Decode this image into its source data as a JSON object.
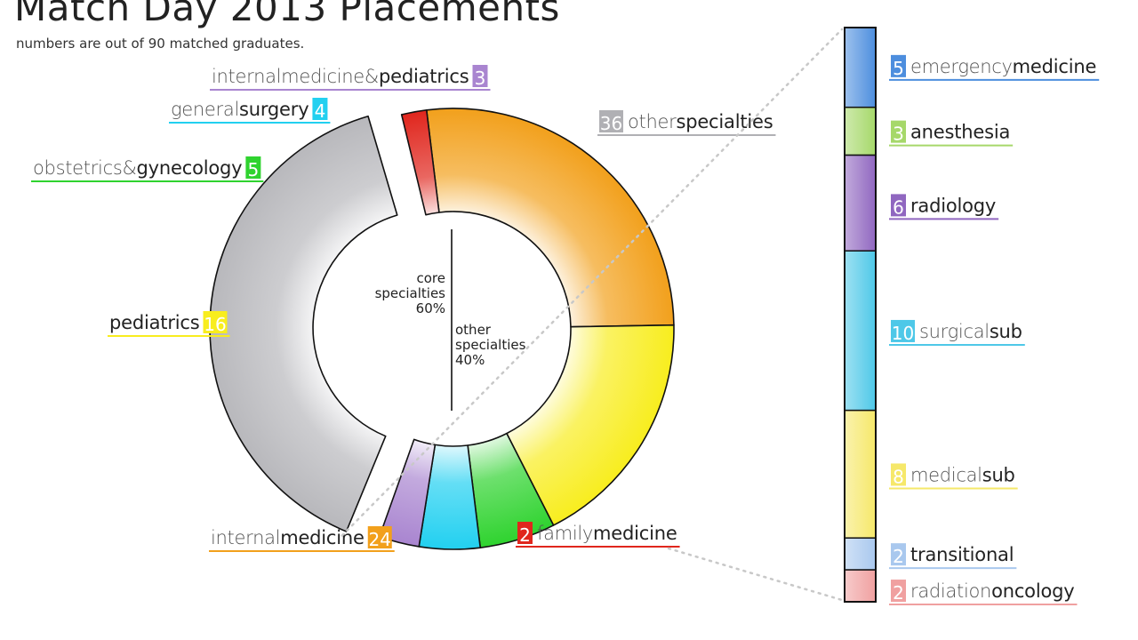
{
  "chart_data": {
    "type": "pie",
    "title": "Match Day 2013 Placements",
    "subtitle": "numbers are out of 90 matched graduates.",
    "total": 90,
    "center_labels": {
      "core": [
        "core",
        "specialties",
        "60%"
      ],
      "other": [
        "other",
        "specialties",
        "40%"
      ]
    },
    "donut": [
      {
        "value": 24,
        "pre": "internal",
        "main": "medicine",
        "color": "#f2a01c"
      },
      {
        "value": 16,
        "pre": "",
        "main": "pediatrics",
        "color": "#f8ed1e"
      },
      {
        "value": 5,
        "pre": "obstetrics&",
        "main": "gynecology",
        "color": "#2fd32f"
      },
      {
        "value": 4,
        "pre": "general",
        "main": "surgery",
        "color": "#22d0f0"
      },
      {
        "value": 3,
        "pre": "internalmedicine&",
        "main": "pediatrics",
        "color": "#a985d0"
      },
      {
        "value": 36,
        "pre": "other",
        "main": "specialties",
        "color": "#b8b8bc"
      },
      {
        "value": 2,
        "pre": "family",
        "main": "medicine",
        "color": "#e0261d"
      }
    ],
    "breakdown": [
      {
        "value": 5,
        "pre": "emergency",
        "main": "medicine",
        "color": "#4d8ede"
      },
      {
        "value": 3,
        "pre": "",
        "main": "anesthesia",
        "color": "#a6d86a"
      },
      {
        "value": 6,
        "pre": "",
        "main": "radiology",
        "color": "#9067c0"
      },
      {
        "value": 10,
        "pre": "surgical",
        "main": "sub",
        "color": "#4ec8e8"
      },
      {
        "value": 8,
        "pre": "medical",
        "main": "sub",
        "color": "#f6e86a"
      },
      {
        "value": 2,
        "pre": "",
        "main": "transitional",
        "color": "#a9c8ee"
      },
      {
        "value": 2,
        "pre": "radiation",
        "main": "oncology",
        "color": "#f0a0a0"
      }
    ]
  }
}
